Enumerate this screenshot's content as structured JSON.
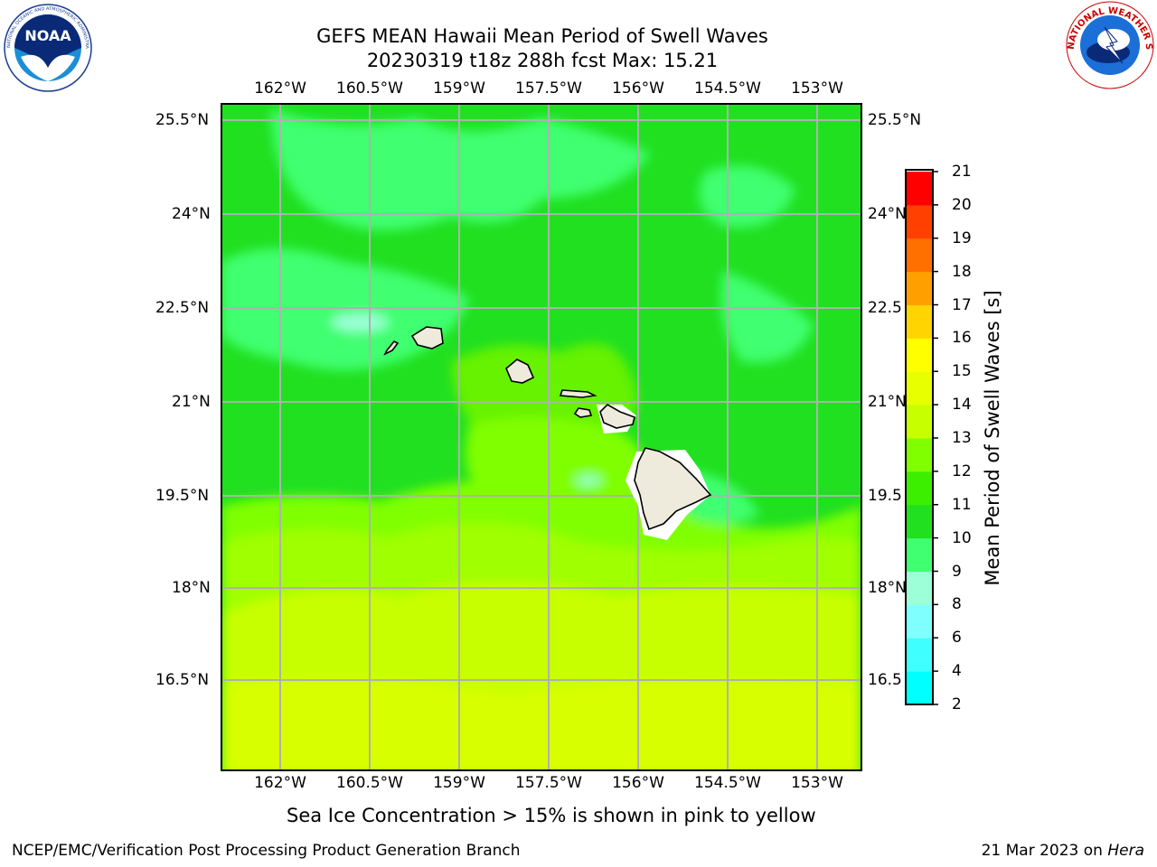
{
  "header": {
    "title_line1": "GEFS MEAN Hawaii Mean Period of Swell Waves",
    "title_line2": "20230319 t18z 288h fcst   Max: 15.21"
  },
  "logos": {
    "noaa_text": "NOAA",
    "noaa_ring": "NATIONAL OCEANIC AND ATMOSPHERIC ADMINISTRATION · U.S. DEPARTMENT OF COMMERCE",
    "nws_ring": "NATIONAL WEATHER SERVICE"
  },
  "map": {
    "lon_labels": [
      "162°W",
      "160.5°W",
      "159°W",
      "157.5°W",
      "156°W",
      "154.5°W",
      "153°W"
    ],
    "lat_labels": [
      "25.5°N",
      "24°N",
      "22.5°N",
      "21°N",
      "19.5°N",
      "18°N",
      "16.5°N"
    ],
    "lat_labels_right": [
      "25.5°N",
      "24°N",
      "22.5",
      "21°N",
      "19.5",
      "18°N",
      "16.5"
    ],
    "land_color": "#eeebdc",
    "grid_color": "#b0b0b0"
  },
  "colorbar": {
    "title": "Mean Period of Swell Waves [s]",
    "ticks": [
      "2",
      "4",
      "6",
      "8",
      "9",
      "10",
      "11",
      "12",
      "13",
      "14",
      "15",
      "16",
      "17",
      "18",
      "19",
      "20",
      "21"
    ],
    "colors": [
      "#0000ff",
      "#0070ff",
      "#00ffff",
      "#40ffff",
      "#80ffff",
      "#9cffd8",
      "#40ff70",
      "#20e020",
      "#3cee00",
      "#80ff00",
      "#c8ff00",
      "#e8ff00",
      "#ffff00",
      "#ffd400",
      "#ffa000",
      "#ff7000",
      "#ff4000",
      "#ff0000"
    ]
  },
  "notes": {
    "sea_ice": "Sea Ice Concentration > 15% is shown in pink to yellow"
  },
  "footer": {
    "left": "NCEP/EMC/Verification Post Processing Product Generation Branch",
    "right_date": "21 Mar 2023 on ",
    "right_host": "Hera"
  }
}
